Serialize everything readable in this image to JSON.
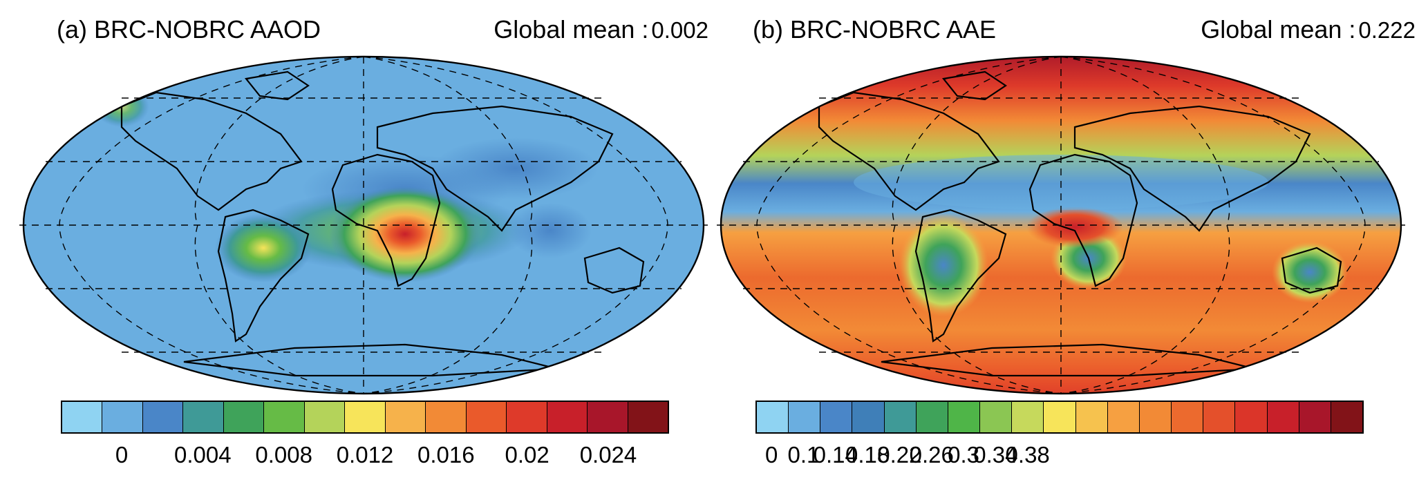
{
  "panels": [
    {
      "title": "(a) BRC-NOBRC AAOD",
      "global_mean_label": "Global mean :",
      "global_mean_value": "0.002",
      "colorbar": {
        "colors": [
          "#8fd3f2",
          "#6aaee0",
          "#4a86c8",
          "#3f9a97",
          "#3fa35a",
          "#66bb46",
          "#b4d35a",
          "#f7e45a",
          "#f6b24b",
          "#f28a36",
          "#ea5a2b",
          "#de3a2a",
          "#c8202a",
          "#a8162a",
          "#821318"
        ],
        "tick_labels": [
          "0",
          "0.004",
          "0.008",
          "0.012",
          "0.016",
          "0.02",
          "0.024"
        ]
      }
    },
    {
      "title": "(b) BRC-NOBRC AAE",
      "global_mean_label": "Global mean :",
      "global_mean_value": "0.222",
      "colorbar": {
        "colors": [
          "#8fd3f2",
          "#6aaee0",
          "#4a86c8",
          "#3f7fb8",
          "#3f9a97",
          "#3fa35a",
          "#4fb548",
          "#8bc653",
          "#c6d95c",
          "#f7e45a",
          "#f6c24e",
          "#f6a041",
          "#f28a36",
          "#ec6a2e",
          "#e4502b",
          "#db3529",
          "#c8202a",
          "#a8162a",
          "#821318"
        ],
        "tick_labels": [
          "0",
          "0.1",
          "0.14",
          "0.18",
          "0.22",
          "0.26",
          "0.3",
          "0.34",
          "0.38"
        ]
      }
    }
  ]
}
